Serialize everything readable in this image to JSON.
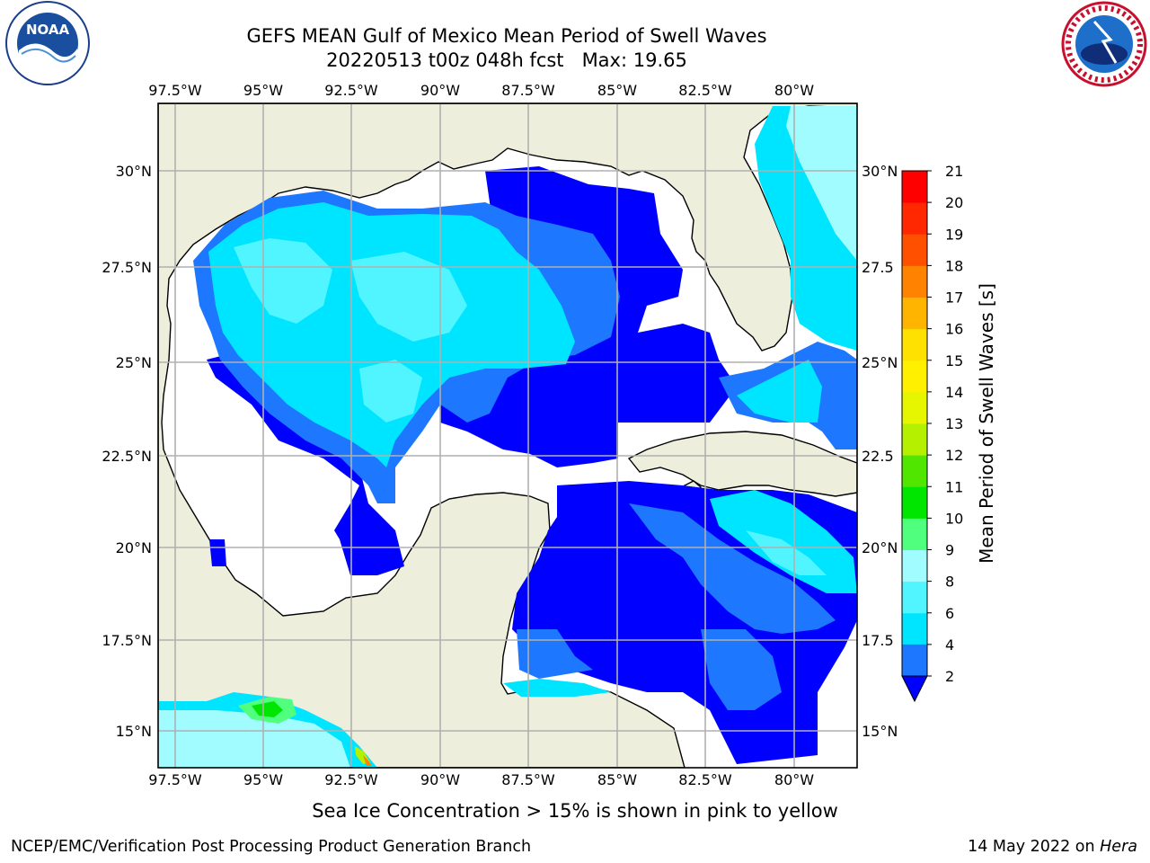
{
  "header": {
    "title_line1": "GEFS MEAN Gulf of Mexico Mean Period of Swell Waves",
    "title_line2": "20220513 t00z 048h fcst   Max: 19.65"
  },
  "logos": {
    "left": {
      "icon": "noaa-logo",
      "text": "NOAA",
      "ring_text": "NATIONAL OCEANIC AND ATMOSPHERIC ADMINISTRATION · U.S. DEPARTMENT OF COMMERCE"
    },
    "right": {
      "icon": "nws-logo",
      "ring_text": "NATIONAL WEATHER SERVICE"
    }
  },
  "map": {
    "lon_labels": [
      "97.5°W",
      "95°W",
      "92.5°W",
      "90°W",
      "87.5°W",
      "85°W",
      "82.5°W",
      "80°W"
    ],
    "lat_labels": [
      "30°N",
      "27.5°N",
      "25°N",
      "22.5°N",
      "20°N",
      "17.5°N",
      "15°N"
    ],
    "lat_labels_right": [
      "30°N",
      "27.5",
      "25°N",
      "22.5",
      "20°N",
      "17.5",
      "15°N"
    ],
    "land_color": "#eeeedd",
    "ocean_no_data_color": "#ffffff",
    "gridline_color": "#b0b0b0"
  },
  "colorbar": {
    "label": "Mean Period of Swell Waves [s]",
    "tick_labels": [
      "2",
      "4",
      "6",
      "8",
      "9",
      "10",
      "11",
      "12",
      "13",
      "14",
      "15",
      "16",
      "17",
      "18",
      "19",
      "20",
      "21"
    ],
    "colors": [
      "#0000ff",
      "#1e78ff",
      "#00e5ff",
      "#50f5ff",
      "#a0fcff",
      "#50ff7d",
      "#00e600",
      "#50e600",
      "#b4f000",
      "#e6f500",
      "#fff000",
      "#ffe100",
      "#ffb400",
      "#ff8200",
      "#ff5000",
      "#ff2800",
      "#ff0000"
    ],
    "extend_min_color": "#0000ff"
  },
  "footer": {
    "note": "Sea Ice Concentration > 15% is shown in pink to yellow",
    "credit": "NCEP/EMC/Verification Post Processing Product Generation Branch",
    "date_prefix": "14 May 2022 on ",
    "date_host": "Hera"
  }
}
